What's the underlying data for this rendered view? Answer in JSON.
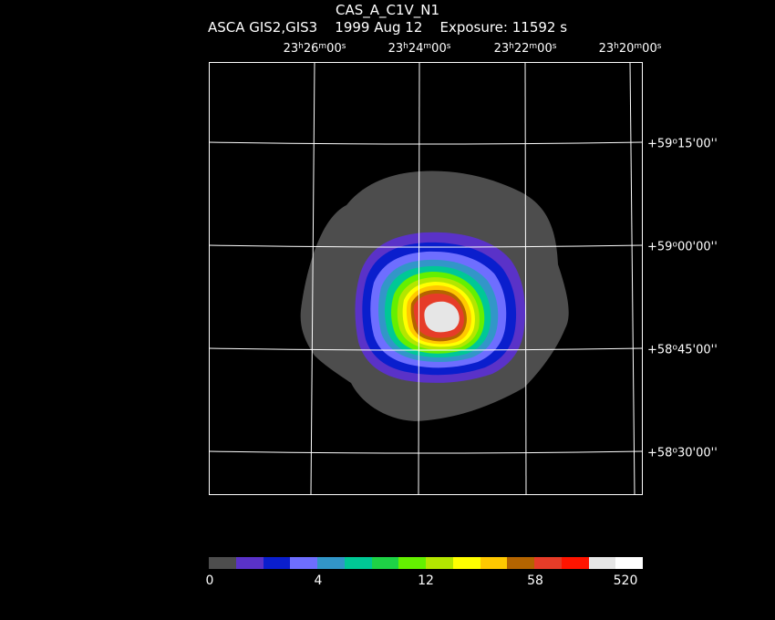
{
  "header": {
    "title": "CAS_A_C1V_N1",
    "instrument": "ASCA GIS2,GIS3",
    "date": "1999 Aug 12",
    "exposure": "Exposure: 11592 s"
  },
  "ra_labels": [
    {
      "h": "23",
      "m": "26",
      "s": "00"
    },
    {
      "h": "23",
      "m": "24",
      "s": "00"
    },
    {
      "h": "23",
      "m": "22",
      "s": "00"
    },
    {
      "h": "23",
      "m": "20",
      "s": "00"
    }
  ],
  "dec_labels": [
    {
      "sign": "+",
      "d": "59",
      "m": "15",
      "s": "00"
    },
    {
      "sign": "+",
      "d": "59",
      "m": "00",
      "s": "00"
    },
    {
      "sign": "+",
      "d": "58",
      "m": "45",
      "s": "00"
    },
    {
      "sign": "+",
      "d": "58",
      "m": "30",
      "s": "00"
    }
  ],
  "colorbar": {
    "colors": [
      "#4d4d4d",
      "#5a32c8",
      "#0a1ecd",
      "#6e6eff",
      "#3296c8",
      "#00c896",
      "#1ed246",
      "#64f000",
      "#b4e600",
      "#ffff00",
      "#ffc800",
      "#b46400",
      "#e63c28",
      "#ff1400",
      "#e6e6e6",
      "#ffffff"
    ],
    "ticks": [
      "0",
      "4",
      "12",
      "58",
      "520"
    ]
  },
  "image_levels": [
    {
      "level": "grey",
      "color": "#4d4d4d"
    },
    {
      "level": "purple",
      "color": "#5a32c8"
    },
    {
      "level": "blue",
      "color": "#0a1ecd"
    },
    {
      "level": "light-blue",
      "color": "#6e6eff"
    },
    {
      "level": "teal",
      "color": "#3296c8"
    },
    {
      "level": "green",
      "color": "#00c896"
    },
    {
      "level": "lime",
      "color": "#64f000"
    },
    {
      "level": "yellow-green",
      "color": "#b4e600"
    },
    {
      "level": "yellow",
      "color": "#ffff00"
    },
    {
      "level": "orange",
      "color": "#ffc800"
    },
    {
      "level": "brown",
      "color": "#b46400"
    },
    {
      "level": "red",
      "color": "#e63c28"
    },
    {
      "level": "white",
      "color": "#e6e6e6"
    }
  ]
}
